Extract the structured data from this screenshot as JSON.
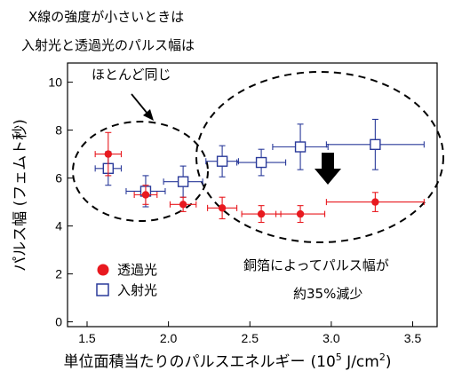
{
  "annotations": {
    "intro_line1": "X線の強度が小さいときは",
    "intro_line2": "入射光と透過光のパルス幅は",
    "same": "ほとんど同じ",
    "reduced_line1": "銅箔によってパルス幅が",
    "reduced_line2": "約35%減少"
  },
  "chart_data": {
    "type": "scatter",
    "xlabel": "単位面積当たりのパルスエネルギー (10⁵ J/cm²)",
    "xlabel_main": "単位面積当たりのパルスエネルギー",
    "xlabel_unit_open": "(10",
    "xlabel_unit_exp": "5",
    "xlabel_unit_mid": " J/cm",
    "xlabel_unit_sq": "2",
    "xlabel_unit_close": ")",
    "ylabel": "パルス幅 (フェムト秒)",
    "xlim": [
      1.38,
      3.65
    ],
    "ylim": [
      -0.2,
      10.8
    ],
    "xticks": [
      1.5,
      2.0,
      2.5,
      3.0,
      3.5
    ],
    "xtick_labels": [
      "1.5",
      "2.0",
      "2.5",
      "3.0",
      "3.5"
    ],
    "yticks": [
      0,
      2,
      4,
      6,
      8,
      10
    ],
    "ytick_labels": [
      "0",
      "2",
      "4",
      "6",
      "8",
      "10"
    ],
    "legend_position": "lower-left",
    "series": [
      {
        "name": "透過光",
        "marker": "filled-circle",
        "color": "#e8191f",
        "points": [
          {
            "x": 1.63,
            "y": 7.0,
            "xerr": 0.08,
            "yerr": 0.9
          },
          {
            "x": 1.86,
            "y": 5.3,
            "xerr": 0.07,
            "yerr": 0.4
          },
          {
            "x": 2.09,
            "y": 4.9,
            "xerr": 0.08,
            "yerr": 0.3
          },
          {
            "x": 2.33,
            "y": 4.75,
            "xerr": 0.09,
            "yerr": 0.45
          },
          {
            "x": 2.57,
            "y": 4.5,
            "xerr": 0.12,
            "yerr": 0.35
          },
          {
            "x": 2.81,
            "y": 4.5,
            "xerr": 0.15,
            "yerr": 0.35
          },
          {
            "x": 3.27,
            "y": 5.0,
            "xerr": 0.3,
            "yerr": 0.4
          }
        ]
      },
      {
        "name": "入射光",
        "marker": "open-square",
        "color": "#2a3a9a",
        "points": [
          {
            "x": 1.63,
            "y": 6.4,
            "xerr": 0.08,
            "yerr": 0.7
          },
          {
            "x": 1.86,
            "y": 5.45,
            "xerr": 0.12,
            "yerr": 0.65
          },
          {
            "x": 2.09,
            "y": 5.85,
            "xerr": 0.12,
            "yerr": 0.65
          },
          {
            "x": 2.33,
            "y": 6.7,
            "xerr": 0.1,
            "yerr": 0.65
          },
          {
            "x": 2.57,
            "y": 6.65,
            "xerr": 0.15,
            "yerr": 0.55
          },
          {
            "x": 2.81,
            "y": 7.3,
            "xerr": 0.17,
            "yerr": 0.95
          },
          {
            "x": 3.27,
            "y": 7.4,
            "xerr": 0.3,
            "yerr": 1.05
          }
        ]
      }
    ]
  }
}
